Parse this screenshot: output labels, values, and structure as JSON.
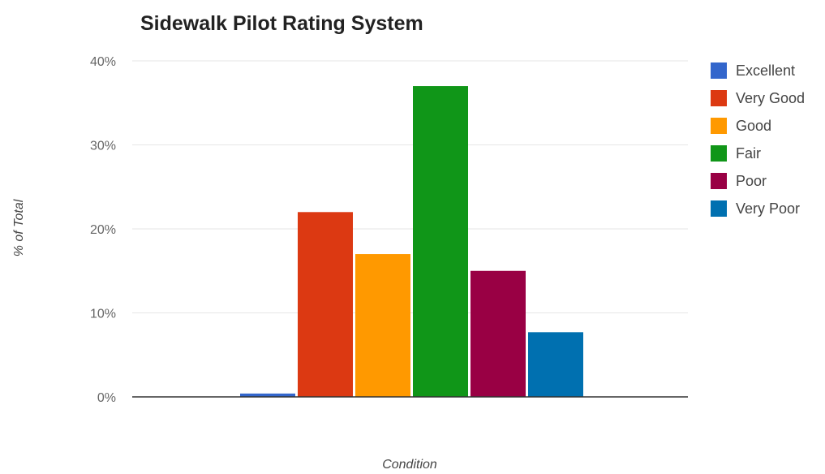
{
  "chart_data": {
    "type": "bar",
    "title": "Sidewalk Pilot Rating System",
    "xlabel": "Condition",
    "ylabel": "% of Total",
    "ylim": [
      0,
      40
    ],
    "yticks": [
      "0%",
      "10%",
      "20%",
      "30%",
      "40%"
    ],
    "grid": true,
    "legend_position": "right",
    "series": [
      {
        "name": "Excellent",
        "value": 0.4,
        "color": "#3366cc"
      },
      {
        "name": "Very Good",
        "value": 22,
        "color": "#dc3912"
      },
      {
        "name": "Good",
        "value": 17,
        "color": "#ff9900"
      },
      {
        "name": "Fair",
        "value": 37,
        "color": "#109618"
      },
      {
        "name": "Poor",
        "value": 15,
        "color": "#990044"
      },
      {
        "name": "Very Poor",
        "value": 7.7,
        "color": "#0070b0"
      }
    ]
  }
}
